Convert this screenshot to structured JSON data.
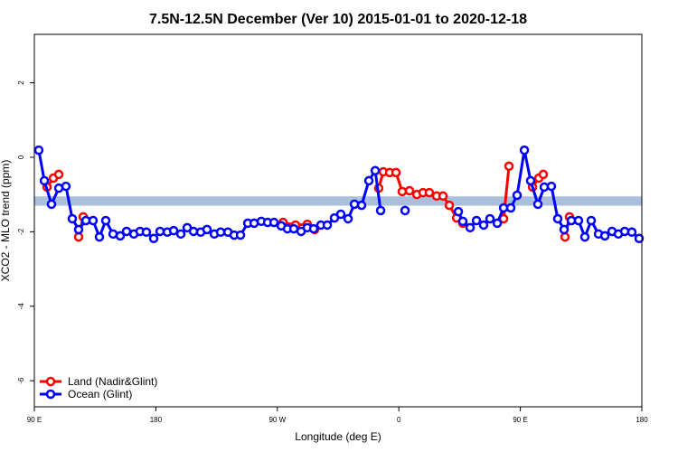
{
  "chart_data": {
    "type": "line",
    "title": "7.5N-12.5N December (Ver 10)   2015-01-01 to 2020-12-18",
    "xlabel": "Longitude (deg E)",
    "ylabel": "XCO2 - MLO trend (ppm)",
    "xlim": [
      90,
      540
    ],
    "ylim": [
      -6.7,
      3.3
    ],
    "xticks": [
      {
        "value": 90,
        "label": "90 E"
      },
      180,
      {
        "value": 270,
        "label": "90 W"
      },
      {
        "value": 360,
        "label": "0"
      },
      {
        "value": 450,
        "label": "90 E"
      },
      {
        "value": 540,
        "label": "180"
      }
    ],
    "yticks": [
      -6,
      -4,
      -2,
      0,
      2
    ],
    "band": {
      "ymin": -1.3,
      "ymax": -1.05,
      "color": "#a9bfdc"
    },
    "legend": "bottom-left",
    "series": [
      {
        "name": "Land (Nadir&Glint)",
        "color": "#ff0000",
        "x": [
          99.4,
          104.1,
          108.1,
          null,
          122.8,
          126.2,
          null,
          274.2,
          283.5,
          292.2,
          297.6,
          null,
          345.1,
          348.5,
          353.2,
          357.9,
          362.5,
          367.9,
          373.3,
          377.9,
          382.6,
          388.0,
          392.7,
          397.4,
          402.8,
          407.4,
          null,
          437.6,
          441.6,
          null,
          459.0,
          463.7,
          467.0,
          null,
          483.1,
          486.4
        ],
        "values": [
          -0.8,
          -0.56,
          -0.46,
          null,
          -2.14,
          -1.6,
          null,
          -1.75,
          -1.82,
          -1.8,
          -1.94,
          null,
          -0.83,
          -0.39,
          -0.41,
          -0.41,
          -0.92,
          -0.9,
          -1.0,
          -0.95,
          -0.95,
          -1.04,
          -1.04,
          -1.29,
          -1.63,
          -1.77,
          null,
          -1.65,
          -0.24,
          null,
          -0.8,
          -0.56,
          -0.46,
          null,
          -2.14,
          -1.6
        ]
      },
      {
        "name": "Ocean (Glint)",
        "color": "#0000ff",
        "x": [
          93.3,
          97.4,
          102.7,
          108.1,
          113.4,
          118.1,
          122.8,
          128.2,
          133.5,
          138.2,
          142.9,
          148.3,
          153.6,
          158.3,
          163.7,
          168.3,
          173.0,
          178.4,
          183.1,
          188.5,
          193.2,
          198.5,
          203.2,
          207.9,
          213.2,
          217.9,
          223.3,
          228.0,
          233.4,
          238.0,
          242.7,
          248.1,
          252.8,
          258.1,
          262.8,
          267.5,
          272.9,
          277.5,
          282.2,
          287.6,
          292.2,
          296.9,
          302.3,
          307.0,
          312.3,
          317.0,
          322.4,
          327.1,
          332.4,
          337.8,
          342.5,
          346.5,
          null,
          364.6,
          null,
          404.1,
          407.4,
          412.8,
          417.5,
          422.8,
          427.5,
          432.9,
          437.6,
          442.9,
          447.6,
          453.0,
          457.6,
          463.0,
          467.7,
          473.0,
          477.7,
          482.4,
          487.8,
          493.1,
          497.8,
          502.5,
          507.9,
          512.6,
          517.9,
          522.6,
          527.3,
          532.6,
          538.0
        ],
        "values": [
          0.19,
          -0.63,
          -1.26,
          -0.83,
          -0.78,
          -1.65,
          -1.94,
          -1.7,
          -1.7,
          -2.14,
          -1.7,
          -2.06,
          -2.11,
          -1.99,
          -2.06,
          -1.99,
          -2.01,
          -2.18,
          -1.99,
          -2.01,
          -1.97,
          -2.06,
          -1.89,
          -1.99,
          -2.01,
          -1.94,
          -2.06,
          -2.01,
          -2.01,
          -2.09,
          -2.09,
          -1.77,
          -1.77,
          -1.72,
          -1.75,
          -1.75,
          -1.84,
          -1.92,
          -1.92,
          -1.99,
          -1.89,
          -1.92,
          -1.82,
          -1.82,
          -1.63,
          -1.53,
          -1.65,
          -1.26,
          -1.29,
          -0.63,
          -0.36,
          -1.43,
          null,
          -1.43,
          null,
          -1.46,
          -1.72,
          -1.89,
          -1.7,
          -1.82,
          -1.65,
          -1.77,
          -1.36,
          -1.36,
          -1.02,
          0.19,
          -0.63,
          -1.26,
          -0.8,
          -0.78,
          -1.65,
          -1.94,
          -1.7,
          -1.7,
          -2.14,
          -1.7,
          -2.06,
          -2.11,
          -1.99,
          -2.06,
          -1.99,
          -2.01,
          -2.18
        ]
      }
    ]
  }
}
